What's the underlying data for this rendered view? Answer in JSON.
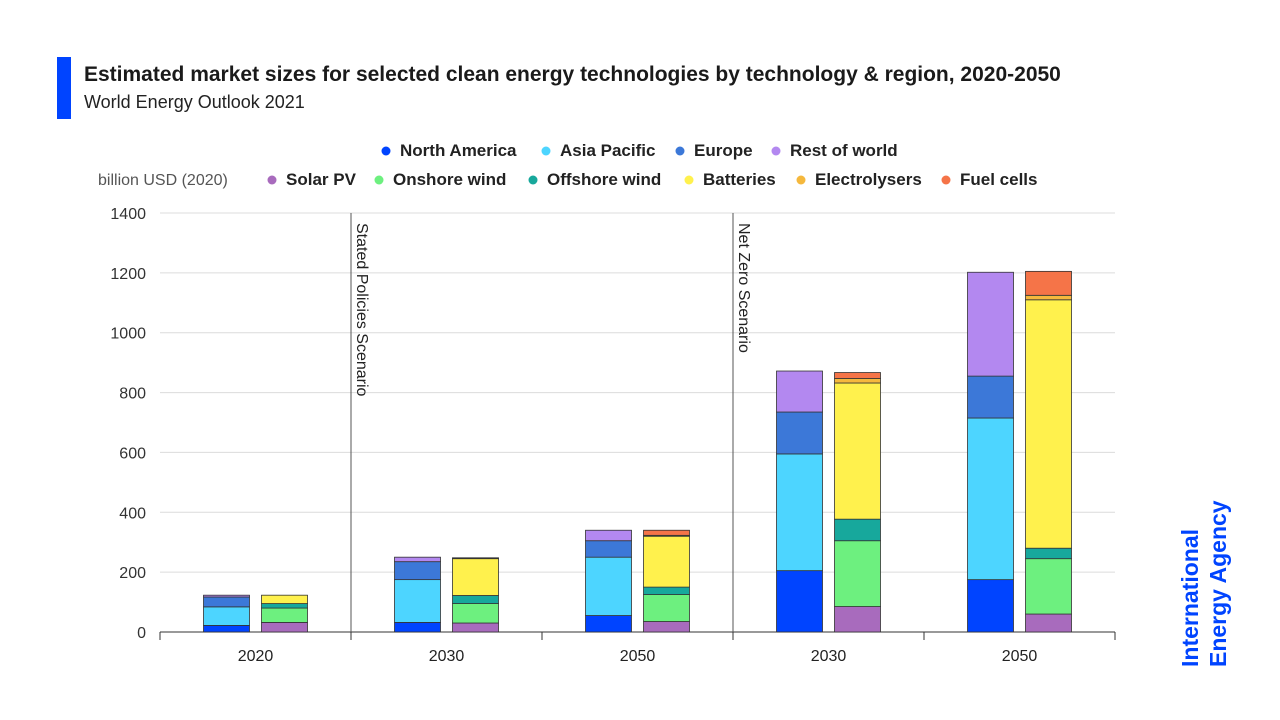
{
  "header": {
    "title": "Estimated market sizes for selected clean energy technologies by technology & region, 2020-2050",
    "subtitle": "World Energy Outlook 2021"
  },
  "brand": {
    "accent_color": "#0044ff",
    "logo_line1": "International",
    "logo_line2": "Energy Agency"
  },
  "chart_data": {
    "type": "bar",
    "stacked": true,
    "title": "Estimated market sizes for selected clean energy technologies by technology & region, 2020-2050",
    "subtitle": "World Energy Outlook 2021",
    "ylabel": "billion USD (2020)",
    "ylim": [
      0,
      1400
    ],
    "yticks": [
      0,
      200,
      400,
      600,
      800,
      1000,
      1200,
      1400
    ],
    "grid": true,
    "legend_position": "top",
    "categories": [
      "2020",
      "2030",
      "2050",
      "2030",
      "2050"
    ],
    "scenario_dividers": [
      "Stated Policies Scenario",
      "Net Zero Scenario"
    ],
    "region_legend": [
      {
        "name": "North America",
        "color": "#0044ff"
      },
      {
        "name": "Asia Pacific",
        "color": "#4dd5ff"
      },
      {
        "name": "Europe",
        "color": "#3c78d8"
      },
      {
        "name": "Rest of world",
        "color": "#b388f0"
      }
    ],
    "technology_legend": [
      {
        "name": "Solar PV",
        "color": "#a86bbd"
      },
      {
        "name": "Onshore wind",
        "color": "#6df07f"
      },
      {
        "name": "Offshore wind",
        "color": "#17a89c"
      },
      {
        "name": "Batteries",
        "color": "#fff14d"
      },
      {
        "name": "Electrolysers",
        "color": "#f5b83d"
      },
      {
        "name": "Fuel cells",
        "color": "#f57448"
      }
    ],
    "by_region": [
      {
        "name": "North America",
        "values": [
          22,
          32,
          55,
          205,
          175
        ]
      },
      {
        "name": "Asia Pacific",
        "values": [
          62,
          143,
          195,
          390,
          540
        ]
      },
      {
        "name": "Europe",
        "values": [
          33,
          60,
          55,
          140,
          140
        ]
      },
      {
        "name": "Rest of world",
        "values": [
          6,
          15,
          35,
          137,
          347
        ]
      }
    ],
    "by_technology": [
      {
        "name": "Solar PV",
        "values": [
          32,
          30,
          35,
          85,
          60
        ]
      },
      {
        "name": "Onshore wind",
        "values": [
          48,
          65,
          90,
          220,
          185
        ]
      },
      {
        "name": "Offshore wind",
        "values": [
          15,
          27,
          25,
          72,
          35
        ]
      },
      {
        "name": "Batteries",
        "values": [
          28,
          123,
          170,
          455,
          830
        ]
      },
      {
        "name": "Electrolysers",
        "values": [
          0,
          2,
          3,
          15,
          15
        ]
      },
      {
        "name": "Fuel cells",
        "values": [
          0,
          1,
          17,
          20,
          80
        ]
      }
    ]
  }
}
